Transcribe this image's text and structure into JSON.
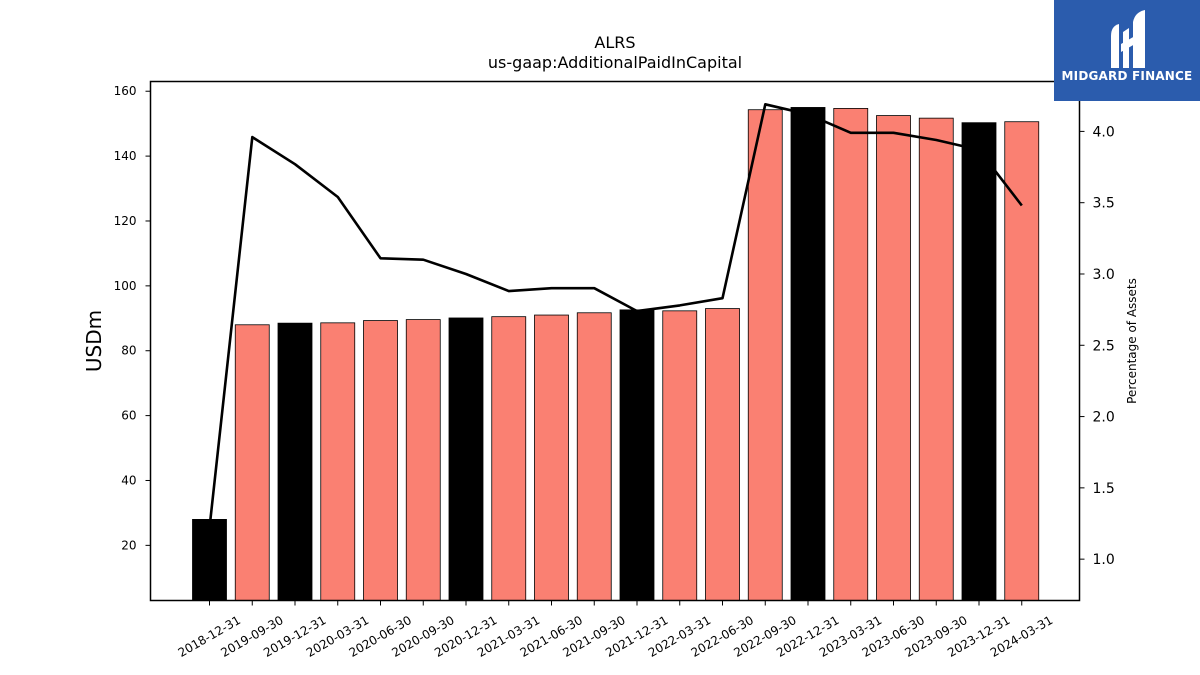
{
  "chart_data": {
    "type": "bar+line",
    "title": "ALRS",
    "subtitle": "us-gaap:AdditionalPaidInCapital",
    "ylabel": "USDm",
    "y2label": "Percentage of Assets",
    "ylim": [
      3,
      163
    ],
    "y2lim": [
      0.71,
      4.35
    ],
    "yticks": [
      20,
      40,
      60,
      80,
      100,
      120,
      140,
      160
    ],
    "y2ticks": [
      1.0,
      1.5,
      2.0,
      2.5,
      3.0,
      3.5,
      4.0
    ],
    "categories": [
      "2018-12-31",
      "2019-09-30",
      "2019-12-31",
      "2020-03-31",
      "2020-06-30",
      "2020-09-30",
      "2020-12-31",
      "2021-03-31",
      "2021-06-30",
      "2021-09-30",
      "2021-12-31",
      "2022-03-31",
      "2022-06-30",
      "2022-09-30",
      "2022-12-31",
      "2023-03-31",
      "2023-06-30",
      "2023-09-30",
      "2023-12-31",
      "2024-03-31"
    ],
    "series": [
      {
        "type": "bar",
        "values": [
          28,
          88,
          88.5,
          88.6,
          89.3,
          89.6,
          90.1,
          90.5,
          91.0,
          91.7,
          92.6,
          92.3,
          93.0,
          154.3,
          155.0,
          154.7,
          152.5,
          151.7,
          150.3,
          150.6
        ]
      },
      {
        "type": "line",
        "axis": "right",
        "values": [
          1.22,
          3.96,
          3.77,
          3.54,
          3.11,
          3.1,
          3.0,
          2.88,
          2.9,
          2.9,
          2.74,
          2.78,
          2.83,
          4.19,
          4.12,
          3.99,
          3.99,
          3.94,
          3.87,
          3.48
        ]
      }
    ],
    "bar_colors": {
      "annual": "#000000",
      "quarterly": "#fa8072"
    },
    "bar_color_pattern": [
      "annual",
      "quarterly",
      "annual",
      "quarterly",
      "quarterly",
      "quarterly",
      "annual",
      "quarterly",
      "quarterly",
      "quarterly",
      "annual",
      "quarterly",
      "quarterly",
      "quarterly",
      "annual",
      "quarterly",
      "quarterly",
      "quarterly",
      "annual",
      "quarterly"
    ],
    "line_color": "#000000",
    "grid": false,
    "legend": "none"
  },
  "logo": {
    "text": "MIDGARD FINANCE",
    "icon": "midgard-logo-icon",
    "background": "#2b5cad"
  }
}
